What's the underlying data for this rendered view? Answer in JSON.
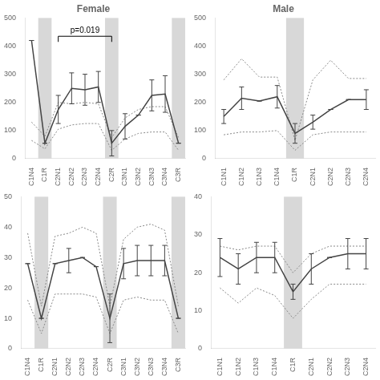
{
  "chart_data": [
    {
      "type": "line",
      "title": "Female",
      "categories": [
        "C1N4",
        "C1R",
        "C2N1",
        "C2N2",
        "C2N3",
        "C2N4",
        "C2R",
        "C3N1",
        "C3N2",
        "C3N3",
        "C3N4",
        "C3R"
      ],
      "ylim": [
        0,
        500
      ],
      "yticks": [
        0,
        100,
        200,
        300,
        400,
        500
      ],
      "grid": false,
      "shaded": {
        "categories": [
          "C1R",
          "C2R",
          "C3R"
        ],
        "color": "#d8d8d8"
      },
      "annotation": {
        "text": "p=0.019",
        "x1": "C2N1",
        "x2": "C2R"
      },
      "series": [
        {
          "color": "#444444",
          "line_style": "solid",
          "values": [
            420,
            55,
            175,
            250,
            245,
            255,
            55,
            115,
            155,
            225,
            230,
            55
          ],
          "error": [
            0,
            0,
            50,
            55,
            55,
            55,
            45,
            45,
            0,
            55,
            65,
            0
          ]
        },
        {
          "color": "#888888",
          "line_style": "dotted",
          "values": [
            130,
            80,
            200,
            195,
            200,
            195,
            75,
            145,
            175,
            185,
            185,
            75
          ]
        },
        {
          "color": "#888888",
          "line_style": "dotted",
          "values": [
            65,
            35,
            105,
            120,
            125,
            125,
            30,
            70,
            90,
            95,
            95,
            30
          ]
        }
      ]
    },
    {
      "type": "line",
      "title": "Male",
      "categories": [
        "C1N1",
        "C1N2",
        "C1N3",
        "C1N4",
        "C1R",
        "C2N1",
        "C2N2",
        "C2N3",
        "C2N4"
      ],
      "ylim": [
        0,
        500
      ],
      "yticks": [
        0,
        100,
        200,
        300,
        400,
        500
      ],
      "grid": false,
      "shaded": {
        "categories": [
          "C1R"
        ],
        "color": "#d8d8d8"
      },
      "series": [
        {
          "color": "#444444",
          "line_style": "solid",
          "values": [
            150,
            215,
            205,
            220,
            90,
            130,
            175,
            210,
            210
          ],
          "error": [
            25,
            40,
            0,
            40,
            35,
            25,
            0,
            0,
            35
          ]
        },
        {
          "color": "#888888",
          "line_style": "dotted",
          "values": [
            280,
            355,
            290,
            290,
            65,
            280,
            350,
            285,
            285
          ]
        },
        {
          "color": "#888888",
          "line_style": "dotted",
          "values": [
            85,
            95,
            95,
            100,
            30,
            85,
            95,
            95,
            95
          ]
        }
      ]
    },
    {
      "type": "line",
      "categories": [
        "C1N4",
        "C1R",
        "C2N1",
        "C2N2",
        "C2N3",
        "C2N4",
        "C2R",
        "C3N1",
        "C3N2",
        "C3N3",
        "C3N4",
        "C3R"
      ],
      "ylim": [
        0,
        50
      ],
      "yticks": [
        0,
        10,
        20,
        30,
        40,
        50
      ],
      "grid": false,
      "shaded": {
        "categories": [
          "C1R",
          "C2R",
          "C3R"
        ],
        "color": "#d8d8d8"
      },
      "series": [
        {
          "color": "#444444",
          "line_style": "solid",
          "values": [
            28,
            10,
            28,
            29,
            30,
            27,
            10,
            28,
            29,
            29,
            29,
            10
          ],
          "error": [
            0,
            0,
            0,
            4,
            0,
            0,
            8,
            5,
            5,
            5,
            5,
            0
          ]
        },
        {
          "color": "#888888",
          "line_style": "dotted",
          "values": [
            38,
            14,
            37,
            38,
            40,
            38,
            14,
            36,
            40,
            41,
            39,
            14
          ]
        },
        {
          "color": "#888888",
          "line_style": "dotted",
          "values": [
            16,
            5,
            18,
            18,
            18,
            17,
            5,
            16,
            17,
            16,
            16,
            5
          ]
        }
      ]
    },
    {
      "type": "line",
      "categories": [
        "C1N1",
        "C1N2",
        "C1N3",
        "C1N4",
        "C1R",
        "C2N1",
        "C2N2",
        "C2N3",
        "C2N4"
      ],
      "ylim": [
        0,
        40
      ],
      "yticks": [
        0,
        10,
        20,
        30,
        40
      ],
      "grid": false,
      "shaded": {
        "categories": [
          "C1R"
        ],
        "color": "#d8d8d8"
      },
      "series": [
        {
          "color": "#444444",
          "line_style": "solid",
          "values": [
            24,
            21,
            24,
            24,
            15,
            21,
            24,
            25,
            25
          ],
          "error": [
            5,
            4,
            4,
            4,
            2,
            4,
            0,
            4,
            4
          ]
        },
        {
          "color": "#888888",
          "line_style": "dotted",
          "values": [
            27,
            26,
            27,
            27,
            20,
            25,
            27,
            27,
            27
          ]
        },
        {
          "color": "#888888",
          "line_style": "dotted",
          "values": [
            16,
            12,
            16,
            14,
            8,
            13,
            17,
            17,
            17
          ]
        }
      ]
    }
  ]
}
